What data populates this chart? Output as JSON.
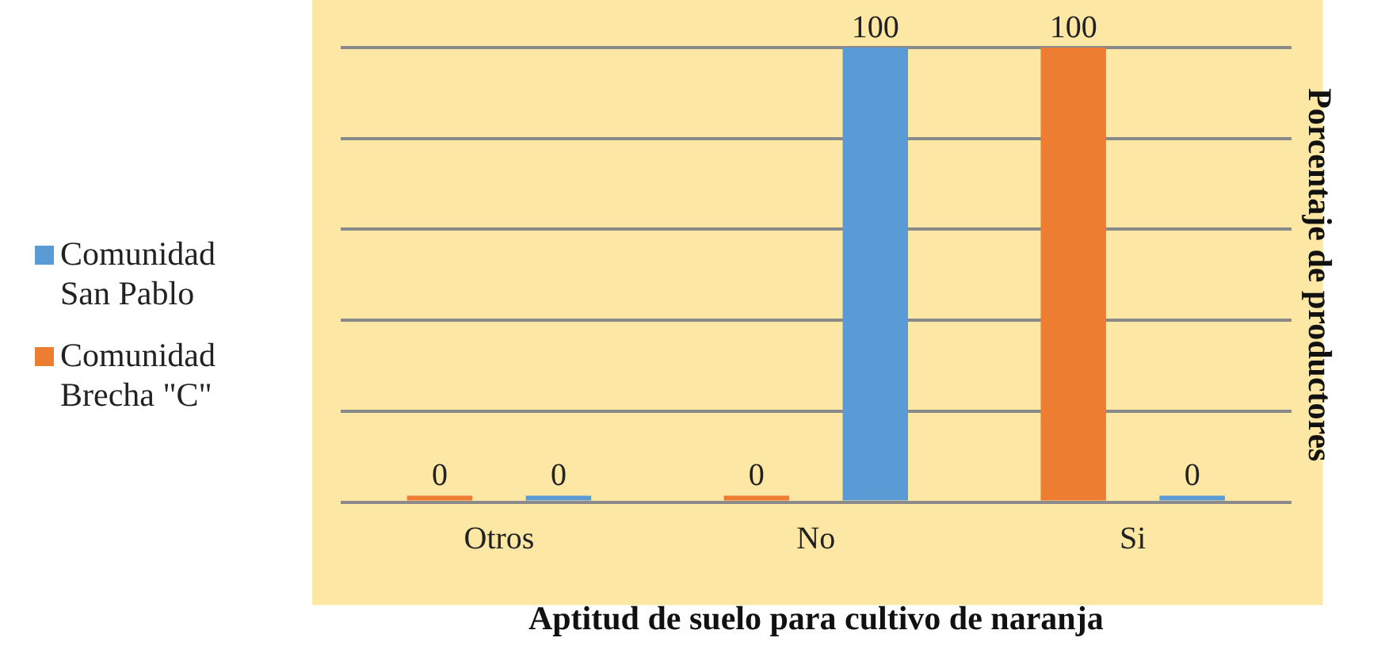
{
  "chart_data": {
    "type": "bar",
    "xlabel": "Aptitud de suelo para cultivo de naranja",
    "ylabel": "Porcentaje de productores",
    "categories": [
      "Otros",
      "No",
      "Si"
    ],
    "series": [
      {
        "name": "Comunidad San Pablo",
        "color": "#5b9bd5",
        "values": [
          0,
          100,
          0
        ]
      },
      {
        "name": "Comunidad Brecha \"C\"",
        "color": "#ed7d31",
        "values": [
          0,
          0,
          100
        ]
      }
    ],
    "ylim": [
      0,
      100
    ],
    "yticks": [
      {
        "value": 0,
        "label": null
      },
      {
        "value": 20,
        "label": null
      },
      {
        "value": 40,
        "label": null
      },
      {
        "value": 60,
        "label": null
      },
      {
        "value": 80,
        "label": null
      },
      {
        "value": 100,
        "label": null
      }
    ],
    "tick_labels": "x",
    "grid": "y",
    "legend": "left",
    "data_labels": true
  }
}
